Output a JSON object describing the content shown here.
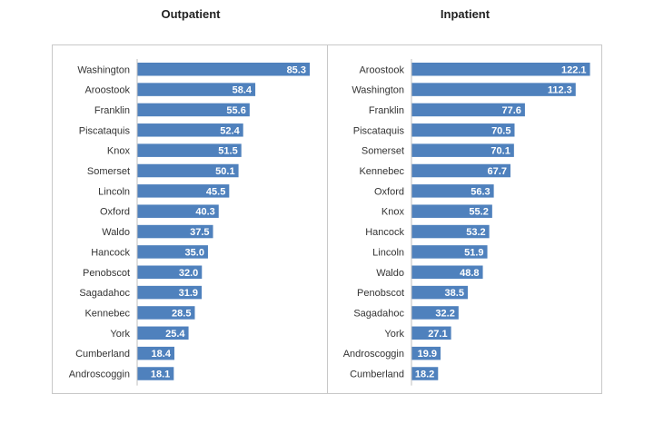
{
  "chart_data": [
    {
      "type": "bar",
      "orientation": "horizontal",
      "title": "Outpatient",
      "categories": [
        "Washington",
        "Aroostook",
        "Franklin",
        "Piscataquis",
        "Knox",
        "Somerset",
        "Lincoln",
        "Oxford",
        "Waldo",
        "Hancock",
        "Penobscot",
        "Sagadahoc",
        "Kennebec",
        "York",
        "Cumberland",
        "Androscoggin"
      ],
      "values": [
        85.3,
        58.4,
        55.6,
        52.4,
        51.5,
        50.1,
        45.5,
        40.3,
        37.5,
        35.0,
        32.0,
        31.9,
        28.5,
        25.4,
        18.4,
        18.1
      ],
      "value_labels": [
        "85.3",
        "58.4",
        "55.6",
        "52.4",
        "51.5",
        "50.1",
        "45.5",
        "40.3",
        "37.5",
        "35.0",
        "32.0",
        "31.9",
        "28.5",
        "25.4",
        "18.4",
        "18.1"
      ],
      "xlim": [
        0,
        88
      ],
      "bar_color": "#4f81bd",
      "grid": false,
      "legend": "none"
    },
    {
      "type": "bar",
      "orientation": "horizontal",
      "title": "Inpatient",
      "categories": [
        "Aroostook",
        "Washington",
        "Franklin",
        "Piscataquis",
        "Somerset",
        "Kennebec",
        "Oxford",
        "Knox",
        "Hancock",
        "Lincoln",
        "Waldo",
        "Penobscot",
        "Sagadahoc",
        "York",
        "Androscoggin",
        "Cumberland"
      ],
      "values": [
        122.1,
        112.3,
        77.6,
        70.5,
        70.1,
        67.7,
        56.3,
        55.2,
        53.2,
        51.9,
        48.8,
        38.5,
        32.2,
        27.1,
        19.9,
        18.2
      ],
      "value_labels": [
        "122.1",
        "112.3",
        "77.6",
        "70.5",
        "70.1",
        "67.7",
        "56.3",
        "55.2",
        "53.2",
        "51.9",
        "48.8",
        "38.5",
        "32.2",
        "27.1",
        "19.9",
        "18.2"
      ],
      "xlim": [
        0,
        123
      ],
      "bar_color": "#4f81bd",
      "grid": false,
      "legend": "none"
    }
  ]
}
